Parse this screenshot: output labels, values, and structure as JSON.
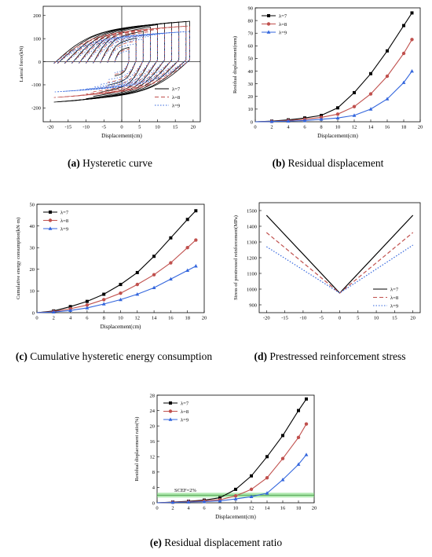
{
  "captions": [
    {
      "label": "(a)",
      "text": " Hysteretic curve"
    },
    {
      "label": "(b)",
      "text": " Residual displacement"
    },
    {
      "label": "(c)",
      "text": " Cumulative hysteretic energy consumption"
    },
    {
      "label": "(d)",
      "text": " Prestressed reinforcement stress"
    },
    {
      "label": "(e)",
      "text": " Residual displacement ratio"
    }
  ],
  "colors": {
    "lambda7": "#000000",
    "lambda8": "#c0504d",
    "lambda9": "#3366dd",
    "scef_band": "#7fdc7f",
    "scef_line": "#2e8b2e"
  },
  "chart_data": [
    {
      "type": "line",
      "id": "a",
      "title": "",
      "xlabel": "Displacement(cm)",
      "ylabel": "Lateral force(kN)",
      "xlim": [
        -22,
        22
      ],
      "ylim": [
        -260,
        240
      ],
      "xticks": [
        -20,
        -15,
        -10,
        -5,
        0,
        5,
        10,
        15,
        20
      ],
      "yticks": [
        -200,
        -100,
        0,
        100,
        200
      ],
      "legend_position": "bottom-right",
      "series": [
        {
          "name": "λ=7",
          "style": "solid",
          "peak_d": [
            2,
            4,
            6,
            8,
            10,
            12,
            14,
            16,
            18,
            19
          ],
          "peak_f": [
            62,
            102,
            132,
            150,
            160,
            166,
            170,
            172,
            174,
            175
          ]
        },
        {
          "name": "λ=8",
          "style": "dashed",
          "peak_d": [
            2,
            4,
            6,
            8,
            10,
            12,
            14,
            16,
            18,
            19
          ],
          "peak_f": [
            55,
            90,
            115,
            130,
            140,
            146,
            150,
            152,
            154,
            155
          ]
        },
        {
          "name": "λ=9",
          "style": "dotted",
          "peak_d": [
            2,
            4,
            6,
            8,
            10,
            12,
            14,
            16,
            18,
            19
          ],
          "peak_f": [
            48,
            78,
            98,
            110,
            118,
            122,
            126,
            128,
            130,
            131
          ]
        }
      ]
    },
    {
      "type": "line",
      "id": "b",
      "title": "",
      "xlabel": "Displacement(cm)",
      "ylabel": "Residual displacement(mm)",
      "xlim": [
        0,
        20
      ],
      "ylim": [
        0,
        90
      ],
      "xticks": [
        0,
        2,
        4,
        6,
        8,
        10,
        12,
        14,
        16,
        18,
        20
      ],
      "yticks": [
        0,
        10,
        20,
        30,
        40,
        50,
        60,
        70,
        80,
        90
      ],
      "legend_position": "top-left",
      "series": [
        {
          "name": "λ=7",
          "marker": "square",
          "x": [
            0,
            2,
            4,
            6,
            8,
            10,
            12,
            14,
            16,
            18,
            19
          ],
          "y": [
            0,
            0.5,
            1.5,
            3,
            5,
            11,
            23,
            38,
            56,
            76,
            86
          ]
        },
        {
          "name": "λ=8",
          "marker": "circle",
          "x": [
            0,
            2,
            4,
            6,
            8,
            10,
            12,
            14,
            16,
            18,
            19
          ],
          "y": [
            0,
            0.3,
            1,
            2,
            3.5,
            6,
            12,
            22,
            36,
            54,
            65
          ]
        },
        {
          "name": "λ=9",
          "marker": "triangle",
          "x": [
            0,
            2,
            4,
            6,
            8,
            10,
            12,
            14,
            16,
            18,
            19
          ],
          "y": [
            0,
            0.2,
            0.5,
            1,
            2,
            3,
            5,
            10,
            18,
            31,
            40
          ]
        }
      ]
    },
    {
      "type": "line",
      "id": "c",
      "title": "",
      "xlabel": "Displacement(cm)",
      "ylabel": "Cumulative energy consumption(kN·m)",
      "xlim": [
        0,
        20
      ],
      "ylim": [
        0,
        50
      ],
      "xticks": [
        0,
        2,
        4,
        6,
        8,
        10,
        12,
        14,
        16,
        18,
        20
      ],
      "yticks": [
        0,
        10,
        20,
        30,
        40,
        50
      ],
      "legend_position": "top-left",
      "series": [
        {
          "name": "λ=7",
          "marker": "square",
          "x": [
            0,
            2,
            4,
            6,
            8,
            10,
            12,
            14,
            16,
            18,
            19
          ],
          "y": [
            0,
            0.8,
            2.8,
            5.2,
            8.5,
            13,
            18.5,
            26,
            34.5,
            43,
            47
          ]
        },
        {
          "name": "λ=8",
          "marker": "circle",
          "x": [
            0,
            2,
            4,
            6,
            8,
            10,
            12,
            14,
            16,
            18,
            19
          ],
          "y": [
            0,
            0.5,
            1.8,
            3.5,
            6,
            9,
            13,
            17.5,
            23,
            30,
            33.5
          ]
        },
        {
          "name": "λ=9",
          "marker": "triangle",
          "x": [
            0,
            2,
            4,
            6,
            8,
            10,
            12,
            14,
            16,
            18,
            19
          ],
          "y": [
            0,
            0.3,
            1,
            2.2,
            4,
            6,
            8.5,
            11.5,
            15.5,
            19.5,
            21.5
          ]
        }
      ]
    },
    {
      "type": "line",
      "id": "d",
      "title": "",
      "xlabel": "",
      "ylabel": "Stress of prestressed reinforcement(MPa)",
      "xlim": [
        -22,
        22
      ],
      "ylim": [
        850,
        1550
      ],
      "xticks": [
        -20,
        -15,
        -10,
        -5,
        0,
        5,
        10,
        15,
        20
      ],
      "yticks": [
        900,
        1000,
        1100,
        1200,
        1300,
        1400,
        1500
      ],
      "legend_position": "bottom-right",
      "series": [
        {
          "name": "λ=7",
          "style": "solid",
          "x": [
            -20,
            0,
            20
          ],
          "y": [
            1470,
            975,
            1470
          ]
        },
        {
          "name": "λ=8",
          "style": "dashed",
          "x": [
            -20,
            0,
            20
          ],
          "y": [
            1360,
            975,
            1360
          ]
        },
        {
          "name": "λ=9",
          "style": "dotted",
          "x": [
            -20,
            0,
            20
          ],
          "y": [
            1270,
            975,
            1280
          ]
        }
      ]
    },
    {
      "type": "line",
      "id": "e",
      "title": "",
      "xlabel": "Displacement(cm)",
      "ylabel": "Residual displacement ratio(%)",
      "xlim": [
        0,
        20
      ],
      "ylim": [
        0,
        28
      ],
      "xticks": [
        0,
        2,
        4,
        6,
        8,
        10,
        12,
        14,
        16,
        18,
        20
      ],
      "yticks": [
        0,
        4,
        8,
        12,
        16,
        20,
        24,
        28
      ],
      "legend_position": "top-left",
      "annotation": {
        "text": "SCEF=2%",
        "y": 2
      },
      "series": [
        {
          "name": "λ=7",
          "marker": "square",
          "x": [
            0,
            2,
            4,
            6,
            8,
            10,
            12,
            14,
            16,
            18,
            19
          ],
          "y": [
            0,
            0.2,
            0.4,
            0.7,
            1.3,
            3.5,
            7,
            12,
            17.5,
            24,
            27
          ]
        },
        {
          "name": "λ=8",
          "marker": "circle",
          "x": [
            0,
            2,
            4,
            6,
            8,
            10,
            12,
            14,
            16,
            18,
            19
          ],
          "y": [
            0,
            0.15,
            0.3,
            0.5,
            0.8,
            1.8,
            3.5,
            6.5,
            11.5,
            17,
            20.5
          ]
        },
        {
          "name": "λ=9",
          "marker": "triangle",
          "x": [
            0,
            2,
            4,
            6,
            8,
            10,
            12,
            14,
            16,
            18,
            19
          ],
          "y": [
            0,
            0.1,
            0.2,
            0.3,
            0.5,
            1,
            1.6,
            2.5,
            6,
            10,
            12.5
          ]
        }
      ]
    }
  ]
}
